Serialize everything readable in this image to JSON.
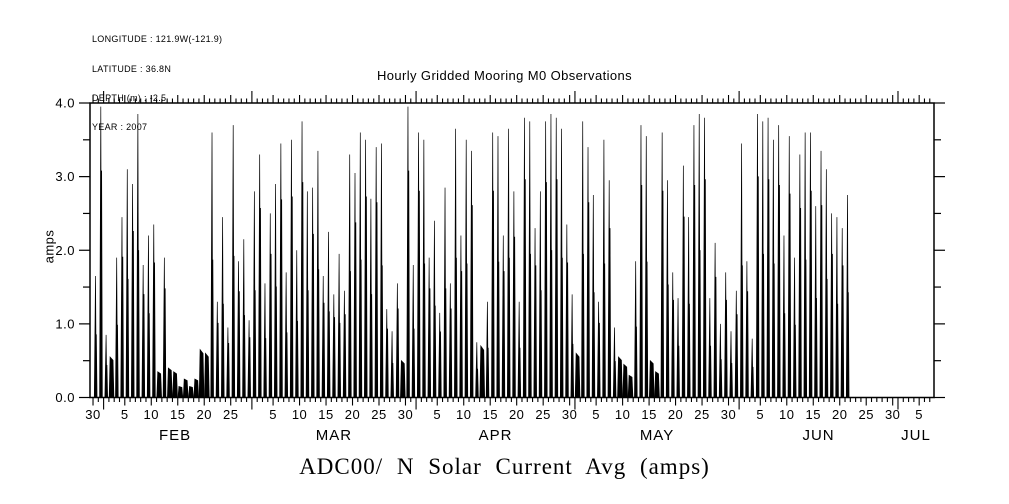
{
  "header": {
    "lines": [
      "LONGITUDE : 121.9W(-121.9)",
      "LATITUDE : 36.8N",
      "DEPTH (m) : -2.5",
      "YEAR : 2007"
    ]
  },
  "chart_data": {
    "type": "line",
    "title": "Hourly Gridded Mooring M0 Observations",
    "bottom_title": "ADC00/ N Solar Current Avg (amps)",
    "ylabel": "amps",
    "ylim": [
      0.0,
      4.0
    ],
    "y_major_tick_labels": [
      "0.0",
      "1.0",
      "2.0",
      "3.0",
      "4.0"
    ],
    "y_minor_tick_interval": 0.5,
    "line_color": "#000000",
    "background_color": "#ffffff",
    "grid": "off",
    "x_axis": {
      "start_date": "2007-01-30",
      "end_date": "2007-07-07",
      "day_tick_labels": [
        {
          "label": "30",
          "doy": 30
        },
        {
          "label": "5",
          "doy": 36
        },
        {
          "label": "10",
          "doy": 41
        },
        {
          "label": "15",
          "doy": 46
        },
        {
          "label": "20",
          "doy": 51
        },
        {
          "label": "25",
          "doy": 56
        },
        {
          "label": "5",
          "doy": 64
        },
        {
          "label": "10",
          "doy": 69
        },
        {
          "label": "15",
          "doy": 74
        },
        {
          "label": "20",
          "doy": 79
        },
        {
          "label": "25",
          "doy": 84
        },
        {
          "label": "30",
          "doy": 89
        },
        {
          "label": "5",
          "doy": 95
        },
        {
          "label": "10",
          "doy": 100
        },
        {
          "label": "15",
          "doy": 105
        },
        {
          "label": "20",
          "doy": 110
        },
        {
          "label": "25",
          "doy": 115
        },
        {
          "label": "30",
          "doy": 120
        },
        {
          "label": "5",
          "doy": 125
        },
        {
          "label": "10",
          "doy": 130
        },
        {
          "label": "15",
          "doy": 135
        },
        {
          "label": "20",
          "doy": 140
        },
        {
          "label": "25",
          "doy": 145
        },
        {
          "label": "30",
          "doy": 150
        },
        {
          "label": "5",
          "doy": 156
        },
        {
          "label": "10",
          "doy": 161
        },
        {
          "label": "15",
          "doy": 166
        },
        {
          "label": "20",
          "doy": 171
        },
        {
          "label": "25",
          "doy": 176
        },
        {
          "label": "30",
          "doy": 181
        },
        {
          "label": "5",
          "doy": 186
        }
      ],
      "month_labels": [
        {
          "label": "FEB",
          "center_doy": 45.5
        },
        {
          "label": "MAR",
          "center_doy": 75.5
        },
        {
          "label": "APR",
          "center_doy": 106
        },
        {
          "label": "MAY",
          "center_doy": 136.5
        },
        {
          "label": "JUN",
          "center_doy": 167
        },
        {
          "label": "JUL",
          "center_doy": 185.4
        }
      ],
      "month_boundary_doys": [
        32,
        60,
        91,
        121,
        152,
        182
      ]
    },
    "series": [
      {
        "name": "N Solar Current Avg",
        "units": "amps",
        "start_date": "2007-01-30",
        "start_doy": 30,
        "data_end_date": "2007-06-21",
        "daily_peak_amps": [
          1.65,
          3.95,
          0.85,
          0.55,
          1.9,
          2.45,
          3.1,
          2.9,
          3.85,
          1.8,
          2.2,
          2.35,
          0.35,
          1.9,
          0.4,
          0.35,
          0.15,
          0.25,
          0.15,
          0.25,
          0.65,
          0.6,
          3.6,
          1.3,
          2.45,
          0.95,
          3.7,
          1.85,
          2.15,
          1.05,
          2.8,
          3.3,
          1.55,
          2.5,
          2.9,
          3.45,
          1.7,
          3.5,
          2.0,
          3.75,
          2.8,
          2.85,
          3.35,
          1.65,
          2.25,
          1.4,
          1.95,
          1.45,
          3.3,
          3.05,
          3.6,
          3.5,
          2.7,
          3.4,
          3.45,
          1.2,
          0.9,
          1.55,
          0.5,
          3.95,
          1.8,
          3.6,
          3.5,
          1.9,
          2.4,
          1.15,
          2.85,
          1.55,
          3.65,
          2.2,
          3.5,
          3.35,
          0.75,
          0.7,
          1.3,
          3.6,
          3.55,
          2.2,
          3.65,
          2.8,
          1.3,
          3.8,
          3.75,
          2.3,
          2.8,
          3.75,
          3.85,
          3.8,
          3.65,
          2.35,
          1.4,
          0.6,
          3.75,
          3.4,
          2.75,
          1.3,
          3.5,
          2.95,
          0.95,
          0.55,
          0.45,
          0.3,
          1.85,
          3.7,
          3.55,
          0.5,
          0.35,
          3.6,
          2.95,
          1.7,
          1.35,
          3.15,
          2.45,
          3.7,
          3.85,
          3.8,
          1.35,
          2.1,
          1.0,
          1.7,
          0.9,
          1.45,
          3.45,
          1.85,
          0.8,
          3.85,
          3.75,
          3.8,
          3.5,
          3.7,
          2.2,
          3.55,
          1.9,
          3.3,
          3.6,
          3.6,
          2.6,
          3.35,
          3.1,
          2.5,
          2.45,
          2.3,
          2.75
        ]
      }
    ]
  }
}
